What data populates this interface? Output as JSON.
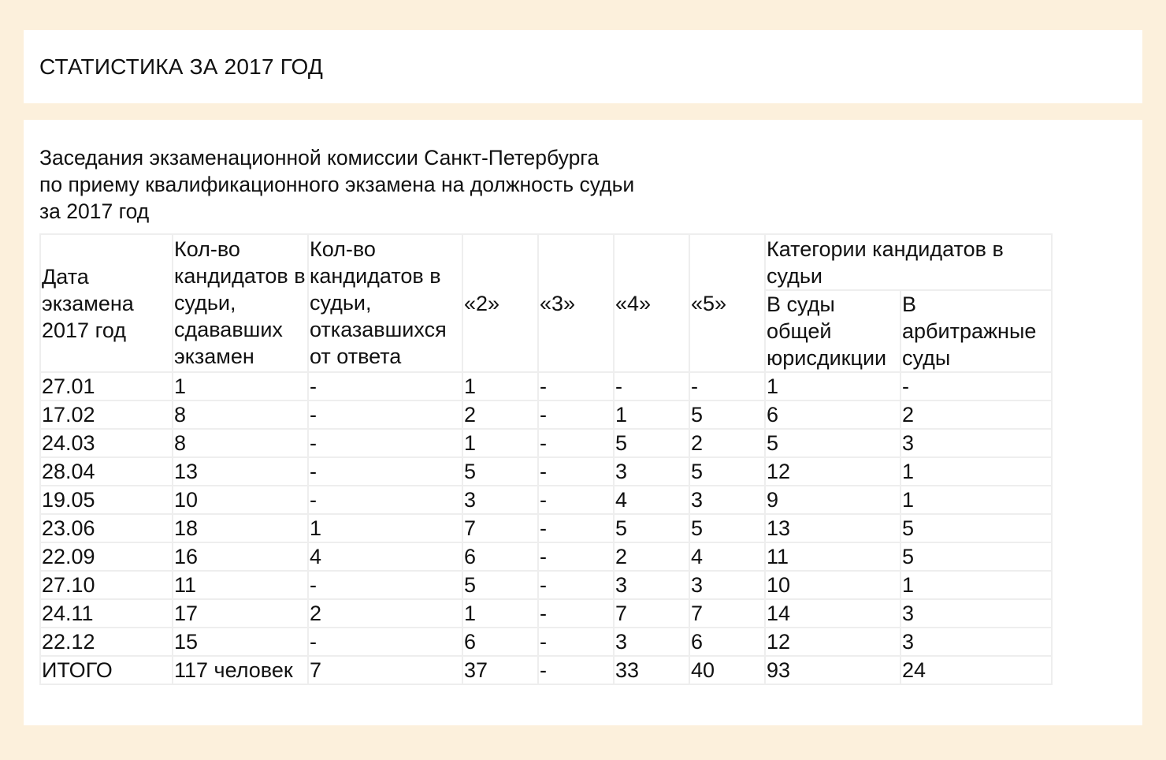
{
  "page_title": "СТАТИСТИКА ЗА 2017 ГОД",
  "heading": {
    "line1": "Заседания экзаменационной комиссии Санкт-Петербурга",
    "line2": "по приему квалификационного экзамена на должность судьи",
    "line3": "за 2017 год"
  },
  "table": {
    "headers": {
      "date": "Дата экзамена 2017 год",
      "taking": "Кол-во кандидатов в судьи, сдававших экзамен",
      "refused": "Кол-во кандидатов в судьи, отказавшихся от ответа",
      "g2": "«2»",
      "g3": "«3»",
      "g4": "«4»",
      "g5": "«5»",
      "categories": "Категории кандидатов в судьи",
      "general": "В суды общей юрисдикции",
      "arbitration": "В арбитражные суды"
    },
    "rows": [
      [
        "27.01",
        "1",
        "-",
        "1",
        "-",
        "-",
        "-",
        "1",
        "-"
      ],
      [
        "17.02",
        "8",
        "-",
        "2",
        "-",
        "1",
        "5",
        "6",
        "2"
      ],
      [
        "24.03",
        "8",
        "-",
        "1",
        "-",
        "5",
        "2",
        "5",
        "3"
      ],
      [
        "28.04",
        "13",
        "-",
        "5",
        "-",
        "3",
        "5",
        "12",
        "1"
      ],
      [
        "19.05",
        "10",
        "-",
        "3",
        "-",
        "4",
        "3",
        "9",
        "1"
      ],
      [
        "23.06",
        "18",
        "1",
        "7",
        "-",
        "5",
        "5",
        "13",
        "5"
      ],
      [
        "22.09",
        "16",
        "4",
        "6",
        "-",
        "2",
        "4",
        "11",
        "5"
      ],
      [
        "27.10",
        "11",
        "-",
        "5",
        "-",
        "3",
        "3",
        "10",
        "1"
      ],
      [
        "24.11",
        "17",
        "2",
        "1",
        "-",
        "7",
        "7",
        "14",
        "3"
      ],
      [
        "22.12",
        "15",
        "-",
        "6",
        "-",
        "3",
        "6",
        "12",
        "3"
      ],
      [
        "ИТОГО",
        "117 человек",
        "7",
        "37",
        "-",
        "33",
        "40",
        "93",
        "24"
      ]
    ]
  }
}
